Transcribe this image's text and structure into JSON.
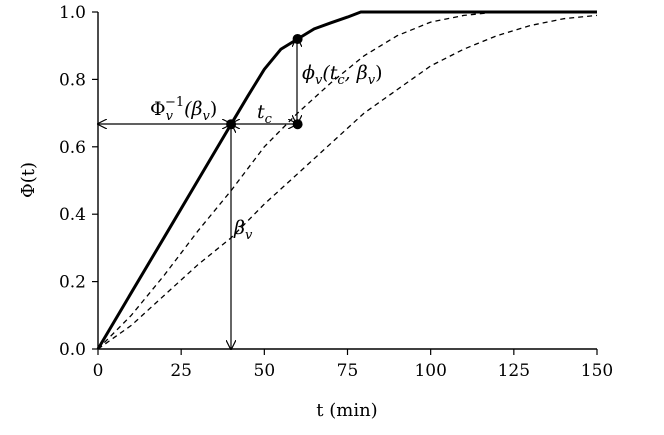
{
  "chart_data": {
    "type": "line",
    "xlabel": "t (min)",
    "ylabel": "Φ(t)",
    "xlim": [
      0,
      150
    ],
    "ylim": [
      0,
      1.0
    ],
    "xticks": [
      "0",
      "25",
      "50",
      "75",
      "100",
      "125",
      "150"
    ],
    "yticks": [
      "0.0",
      "0.2",
      "0.4",
      "0.6",
      "0.8",
      "1.0"
    ],
    "grid": false,
    "series": [
      {
        "style": "solid",
        "x": [
          0,
          10,
          20,
          30,
          40,
          45,
          50,
          55,
          60,
          65,
          70,
          75,
          79,
          90,
          100,
          125,
          150
        ],
        "y": [
          0,
          0.167,
          0.333,
          0.5,
          0.667,
          0.75,
          0.83,
          0.89,
          0.92,
          0.95,
          0.968,
          0.985,
          1.0,
          1.0,
          1.0,
          1.0,
          1.0
        ]
      },
      {
        "style": "dashed",
        "x": [
          0,
          10,
          20,
          30,
          40,
          50,
          60,
          70,
          80,
          90,
          100,
          110,
          120,
          135,
          150
        ],
        "y": [
          0,
          0.1,
          0.22,
          0.35,
          0.47,
          0.6,
          0.7,
          0.79,
          0.87,
          0.93,
          0.97,
          0.99,
          1.0,
          1.0,
          1.0
        ]
      },
      {
        "style": "dashed",
        "x": [
          0,
          10,
          20,
          30,
          40,
          50,
          60,
          70,
          80,
          90,
          100,
          110,
          120,
          130,
          140,
          150
        ],
        "y": [
          0,
          0.07,
          0.16,
          0.25,
          0.33,
          0.43,
          0.52,
          0.61,
          0.7,
          0.77,
          0.84,
          0.89,
          0.93,
          0.96,
          0.98,
          0.99
        ]
      }
    ],
    "points": [
      {
        "x": 40,
        "y": 0.667
      },
      {
        "x": 60,
        "y": 0.667
      },
      {
        "x": 60,
        "y": 0.92
      }
    ],
    "annotations": [
      {
        "text": "Φv−1(βv)",
        "main": "Φ",
        "sub": "v",
        "sup": "−1",
        "rest": "(β",
        "sub2": "v",
        "close": ")"
      },
      {
        "text": "tc",
        "main": "t",
        "sub": "c"
      },
      {
        "text": "ϕv(tc, βv)",
        "main": "ϕ",
        "sub": "v",
        "rest": "(t",
        "sub2": "c",
        "mid": ", β",
        "sub3": "v",
        "close": ")"
      },
      {
        "text": "βv",
        "main": "β",
        "sub": "v"
      }
    ]
  }
}
